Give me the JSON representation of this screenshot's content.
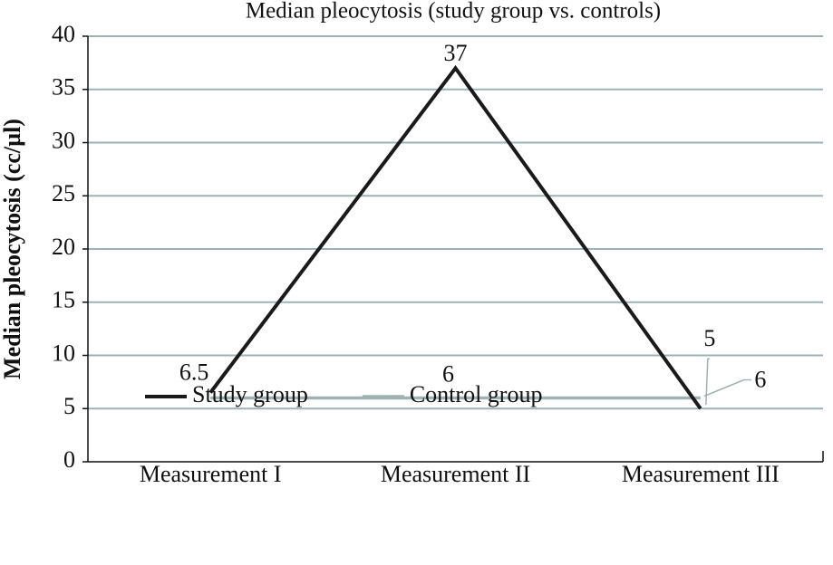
{
  "chart_data": {
    "type": "line",
    "title": "Median pleocytosis (study group vs. controls)",
    "y_label": "Median pleocytosis (cc/µl)",
    "categories": [
      "Measurement I",
      "Measurement II",
      "Measurement III"
    ],
    "series": [
      {
        "name": "Study group",
        "color": "#1a1a1a",
        "values": [
          6.5,
          37,
          5
        ]
      },
      {
        "name": "Control group",
        "color": "#9fb2b2",
        "values": [
          6,
          6,
          6
        ]
      }
    ],
    "ylim": [
      0,
      40
    ],
    "yticks": [
      0,
      5,
      10,
      15,
      20,
      25,
      30,
      35,
      40
    ],
    "grid": true,
    "legend": "bottom"
  }
}
